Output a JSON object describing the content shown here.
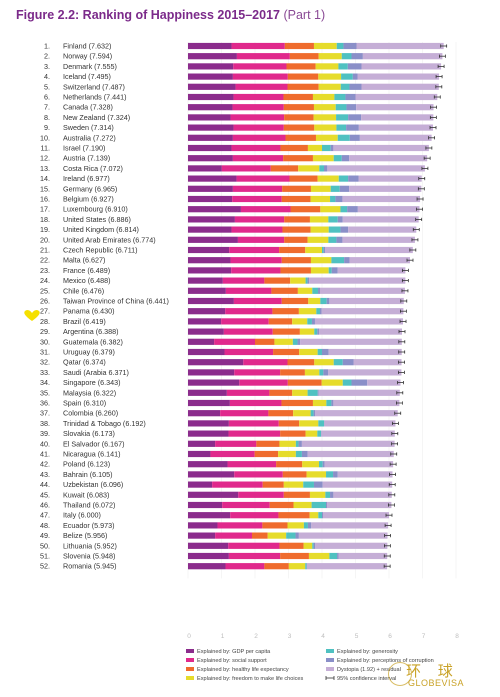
{
  "title": {
    "bold": "Figure 2.2: Ranking of Happiness 2015–2017",
    "part": "(Part 1)"
  },
  "colors": {
    "gdp": "#8b2c8c",
    "social": "#e0298c",
    "health": "#ef6b2d",
    "freedom": "#e6dc2b",
    "generosity": "#4fc1c1",
    "corruption": "#8a8fc8",
    "dystopia": "#c5aed6",
    "ci": "#333333",
    "highlight": "#f5e000"
  },
  "legend": [
    {
      "key": "gdp",
      "label": "Explained by: GDP per capita"
    },
    {
      "key": "social",
      "label": "Explained by: social support"
    },
    {
      "key": "health",
      "label": "Explained by: healthy life expectancy"
    },
    {
      "key": "freedom",
      "label": "Explained by: freedom to make life choices"
    },
    {
      "key": "generosity",
      "label": "Explained by: generosity"
    },
    {
      "key": "corruption",
      "label": "Explained by: perceptions of corruption"
    },
    {
      "key": "dystopia",
      "label": "Dystopia (1.92) + residual"
    },
    {
      "key": "ci",
      "label": "95% confidence interval"
    }
  ],
  "watermark": {
    "cn": "环 球",
    "en": "GLOBEVISA"
  },
  "chart_data": {
    "type": "bar",
    "orientation": "horizontal-stacked",
    "xlim": [
      0,
      8
    ],
    "xticks": [
      0,
      1,
      2,
      3,
      4,
      5,
      6,
      7,
      8
    ],
    "highlighted_rank": 25,
    "rows": [
      {
        "rank": "1.",
        "label": "Finland (7.632)",
        "score": 7.632,
        "c": [
          1.3,
          1.59,
          0.87,
          0.68,
          0.2,
          0.39
        ]
      },
      {
        "rank": "2.",
        "label": "Norway (7.594)",
        "score": 7.594,
        "c": [
          1.46,
          1.58,
          0.86,
          0.69,
          0.29,
          0.34
        ]
      },
      {
        "rank": "3.",
        "label": "Denmark (7.555)",
        "score": 7.555,
        "c": [
          1.35,
          1.59,
          0.87,
          0.68,
          0.28,
          0.41
        ]
      },
      {
        "rank": "4.",
        "label": "Iceland (7.495)",
        "score": 7.495,
        "c": [
          1.34,
          1.64,
          0.91,
          0.68,
          0.35,
          0.14
        ]
      },
      {
        "rank": "5.",
        "label": "Switzerland (7.487)",
        "score": 7.487,
        "c": [
          1.42,
          1.55,
          0.93,
          0.66,
          0.26,
          0.36
        ]
      },
      {
        "rank": "6.",
        "label": "Netherlands (7.441)",
        "score": 7.441,
        "c": [
          1.36,
          1.49,
          0.88,
          0.64,
          0.33,
          0.3
        ]
      },
      {
        "rank": "7.",
        "label": "Canada (7.328)",
        "score": 7.328,
        "c": [
          1.33,
          1.53,
          0.9,
          0.65,
          0.32,
          0.29
        ]
      },
      {
        "rank": "8.",
        "label": "New Zealand (7.324)",
        "score": 7.324,
        "c": [
          1.27,
          1.6,
          0.88,
          0.67,
          0.36,
          0.39
        ]
      },
      {
        "rank": "9.",
        "label": "Sweden (7.314)",
        "score": 7.314,
        "c": [
          1.36,
          1.5,
          0.91,
          0.66,
          0.29,
          0.38
        ]
      },
      {
        "rank": "10.",
        "label": "Australia (7.272)",
        "score": 7.272,
        "c": [
          1.34,
          1.57,
          0.91,
          0.65,
          0.36,
          0.3
        ]
      },
      {
        "rank": "11.",
        "label": "Israel (7.190)",
        "score": 7.19,
        "c": [
          1.3,
          1.46,
          0.82,
          0.42,
          0.26,
          0.08
        ]
      },
      {
        "rank": "12.",
        "label": "Austria (7.139)",
        "score": 7.139,
        "c": [
          1.34,
          1.5,
          0.89,
          0.62,
          0.24,
          0.22
        ]
      },
      {
        "rank": "13.",
        "label": "Costa Rica (7.072)",
        "score": 7.072,
        "c": [
          1.01,
          1.46,
          0.82,
          0.63,
          0.14,
          0.1
        ]
      },
      {
        "rank": "14.",
        "label": "Ireland (6.977)",
        "score": 6.977,
        "c": [
          1.45,
          1.58,
          0.84,
          0.63,
          0.28,
          0.31
        ]
      },
      {
        "rank": "15.",
        "label": "Germany (6.965)",
        "score": 6.965,
        "c": [
          1.34,
          1.47,
          0.86,
          0.59,
          0.27,
          0.28
        ]
      },
      {
        "rank": "16.",
        "label": "Belgium (6.927)",
        "score": 6.927,
        "c": [
          1.32,
          1.48,
          0.86,
          0.58,
          0.16,
          0.21
        ]
      },
      {
        "rank": "17.",
        "label": "Luxembourg (6.910)",
        "score": 6.91,
        "c": [
          1.58,
          1.48,
          0.89,
          0.6,
          0.2,
          0.32
        ]
      },
      {
        "rank": "18.",
        "label": "United States (6.886)",
        "score": 6.886,
        "c": [
          1.4,
          1.47,
          0.77,
          0.55,
          0.28,
          0.15
        ]
      },
      {
        "rank": "19.",
        "label": "United Kingdom (6.814)",
        "score": 6.814,
        "c": [
          1.3,
          1.52,
          0.84,
          0.54,
          0.35,
          0.23
        ]
      },
      {
        "rank": "20.",
        "label": "United Arab Emirates (6.774)",
        "score": 6.774,
        "c": [
          1.49,
          1.38,
          0.7,
          0.62,
          0.24,
          0.18
        ]
      },
      {
        "rank": "21.",
        "label": "Czech Republic (6.711)",
        "score": 6.711,
        "c": [
          1.23,
          1.49,
          0.78,
          0.5,
          0.05,
          0.04
        ]
      },
      {
        "rank": "22.",
        "label": "Malta (6.627)",
        "score": 6.627,
        "c": [
          1.27,
          1.53,
          0.87,
          0.61,
          0.38,
          0.16
        ]
      },
      {
        "rank": "23.",
        "label": "France (6.489)",
        "score": 6.489,
        "c": [
          1.29,
          1.47,
          0.91,
          0.53,
          0.09,
          0.18
        ]
      },
      {
        "rank": "24.",
        "label": "Mexico (6.488)",
        "score": 6.488,
        "c": [
          1.04,
          1.24,
          0.77,
          0.46,
          0.06,
          0.05
        ]
      },
      {
        "rank": "25.",
        "label": "Chile (6.476)",
        "score": 6.476,
        "c": [
          1.13,
          1.36,
          0.79,
          0.43,
          0.17,
          0.06
        ]
      },
      {
        "rank": "26.",
        "label": "Taiwan Province of China (6.441)",
        "score": 6.441,
        "c": [
          1.37,
          1.43,
          0.79,
          0.36,
          0.19,
          0.08
        ]
      },
      {
        "rank": "27.",
        "label": "Panama (6.430)",
        "score": 6.43,
        "c": [
          1.11,
          1.41,
          0.79,
          0.52,
          0.11,
          0.05
        ]
      },
      {
        "rank": "28.",
        "label": "Brazil (6.419)",
        "score": 6.419,
        "c": [
          0.99,
          1.42,
          0.7,
          0.45,
          0.14,
          0.09
        ]
      },
      {
        "rank": "29.",
        "label": "Argentina (6.388)",
        "score": 6.388,
        "c": [
          1.07,
          1.46,
          0.81,
          0.43,
          0.09,
          0.05
        ]
      },
      {
        "rank": "30.",
        "label": "Guatemala (6.382)",
        "score": 6.382,
        "c": [
          0.78,
          1.22,
          0.58,
          0.55,
          0.14,
          0.08
        ]
      },
      {
        "rank": "31.",
        "label": "Uruguay (6.379)",
        "score": 6.379,
        "c": [
          1.09,
          1.45,
          0.78,
          0.55,
          0.13,
          0.2
        ]
      },
      {
        "rank": "32.",
        "label": "Qatar (6.374)",
        "score": 6.374,
        "c": [
          1.65,
          1.32,
          0.8,
          0.58,
          0.27,
          0.32
        ]
      },
      {
        "rank": "33.",
        "label": "Saudi (Arabia 6.371)",
        "score": 6.371,
        "c": [
          1.38,
          1.37,
          0.74,
          0.43,
          0.12,
          0.14
        ]
      },
      {
        "rank": "34.",
        "label": "Singapore (6.343)",
        "score": 6.343,
        "c": [
          1.53,
          1.45,
          1.01,
          0.63,
          0.26,
          0.47
        ]
      },
      {
        "rank": "35.",
        "label": "Malaysia (6.322)",
        "score": 6.322,
        "c": [
          1.16,
          1.27,
          0.68,
          0.46,
          0.3,
          0.03
        ]
      },
      {
        "rank": "36.",
        "label": "Spain (6.310)",
        "score": 6.31,
        "c": [
          1.25,
          1.54,
          0.94,
          0.4,
          0.15,
          0.06
        ]
      },
      {
        "rank": "37.",
        "label": "Colombia (6.260)",
        "score": 6.26,
        "c": [
          0.96,
          1.44,
          0.74,
          0.52,
          0.09,
          0.05
        ]
      },
      {
        "rank": "38.",
        "label": "Trinidad & Tobago (6.192)",
        "score": 6.192,
        "c": [
          1.22,
          1.49,
          0.61,
          0.57,
          0.17,
          0.01
        ]
      },
      {
        "rank": "39.",
        "label": "Slovakia (6.173)",
        "score": 6.173,
        "c": [
          1.21,
          1.54,
          0.76,
          0.35,
          0.11,
          0.01
        ]
      },
      {
        "rank": "40.",
        "label": "El Salvador (6.167)",
        "score": 6.167,
        "c": [
          0.81,
          1.23,
          0.69,
          0.49,
          0.08,
          0.1
        ]
      },
      {
        "rank": "41.",
        "label": "Nicaragua (6.141)",
        "score": 6.141,
        "c": [
          0.67,
          1.32,
          0.7,
          0.53,
          0.18,
          0.17
        ]
      },
      {
        "rank": "42.",
        "label": "Poland (6.123)",
        "score": 6.123,
        "c": [
          1.18,
          1.45,
          0.78,
          0.5,
          0.11,
          0.06
        ]
      },
      {
        "rank": "43.",
        "label": "Bahrain (6.105)",
        "score": 6.105,
        "c": [
          1.38,
          1.45,
          0.71,
          0.58,
          0.21,
          0.14
        ]
      },
      {
        "rank": "44.",
        "label": "Uzbekistan (6.096)",
        "score": 6.096,
        "c": [
          0.72,
          1.51,
          0.63,
          0.58,
          0.32,
          0.26
        ]
      },
      {
        "rank": "45.",
        "label": "Kuwait (6.083)",
        "score": 6.083,
        "c": [
          1.5,
          1.36,
          0.78,
          0.46,
          0.14,
          0.1
        ]
      },
      {
        "rank": "46.",
        "label": "Thailand (6.072)",
        "score": 6.072,
        "c": [
          1.02,
          1.42,
          0.71,
          0.54,
          0.43,
          0.03
        ]
      },
      {
        "rank": "47.",
        "label": "Italy (6.000)",
        "score": 6.0,
        "c": [
          1.26,
          1.44,
          0.93,
          0.26,
          0.11,
          0.03
        ]
      },
      {
        "rank": "48.",
        "label": "Ecuador (5.973)",
        "score": 5.973,
        "c": [
          0.88,
          1.34,
          0.75,
          0.49,
          0.12,
          0.1
        ]
      },
      {
        "rank": "49.",
        "label": "Belize (5.956)",
        "score": 5.956,
        "c": [
          0.81,
          1.1,
          0.47,
          0.55,
          0.28,
          0.1
        ]
      },
      {
        "rank": "50.",
        "label": "Lithuania (5.952)",
        "score": 5.952,
        "c": [
          1.2,
          1.53,
          0.72,
          0.26,
          0.04,
          0.05
        ]
      },
      {
        "rank": "51.",
        "label": "Slovenia (5.948)",
        "score": 5.948,
        "c": [
          1.22,
          1.53,
          0.86,
          0.61,
          0.23,
          0.05
        ]
      },
      {
        "rank": "52.",
        "label": "Romania (5.945)",
        "score": 5.945,
        "c": [
          1.12,
          1.16,
          0.73,
          0.49,
          0.04,
          0.01
        ]
      }
    ]
  }
}
